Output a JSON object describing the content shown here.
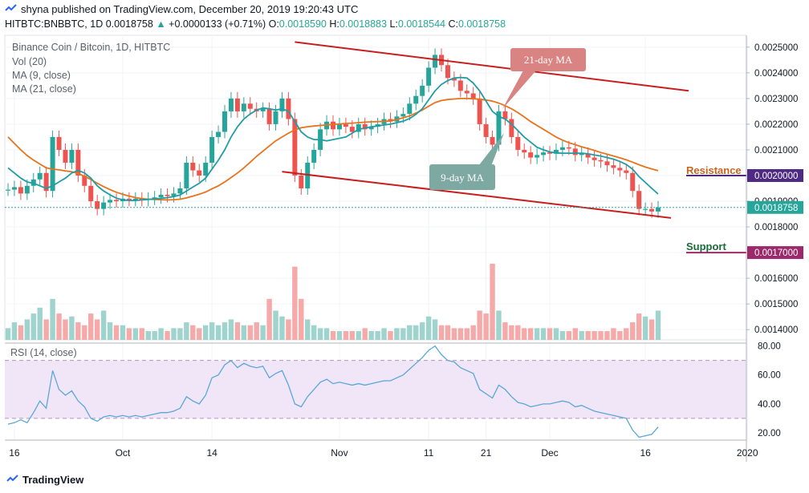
{
  "header": {
    "publisher_line": "shyna published on TradingView.com, December 20, 2019 19:20:43 UTC",
    "symbol": "HITBTC:BNBBTC, 1D",
    "last": "0.0018758",
    "change": "+0.0000133 (+0.71%)",
    "o_label": "O:",
    "o_value": "0.0018590",
    "h_label": "H:",
    "h_value": "0.0018883",
    "l_label": "L:",
    "l_value": "0.0018544",
    "c_label": "C:",
    "c_value": "0.0018758"
  },
  "legend": {
    "title": "Binance Coin / Bitcoin, 1D, HITBTC",
    "vol": "Vol (20)",
    "ma9": "MA (9, close)",
    "ma21": "MA (21, close)",
    "rsi": "RSI (14, close)"
  },
  "annotations": {
    "ma21_callout": "21-day MA",
    "ma9_callout": "9-day MA",
    "resistance_label": "Resistance",
    "resistance_value": "0.0020000",
    "support_label": "Support",
    "support_value": "0.0017000",
    "last_price_tag": "0.0018758",
    "hidden_price_tag": "0.0019000"
  },
  "footer": {
    "brand": "TradingView"
  },
  "colors": {
    "up": "#26a69a",
    "down": "#ef5350",
    "ma9": "#1f9da5",
    "ma21": "#e8731c",
    "trendline": "#c81e1e",
    "resistance": "#4e2a84",
    "support": "#9c2a6b",
    "rsi_line": "#5aa7d8",
    "rsi_band": "#f1e6f8"
  },
  "chart_data": {
    "type": "candlestick",
    "title": "Binance Coin / Bitcoin, 1D, HITBTC",
    "price_axis_ticks": [
      "0.0025000",
      "0.0024000",
      "0.0023000",
      "0.0022000",
      "0.0021000",
      "0.0020000",
      "0.0019000",
      "0.0018000",
      "0.0017000",
      "0.0016000",
      "0.0015000",
      "0.0014000"
    ],
    "price_range": [
      0.00136,
      0.00254
    ],
    "x_axis_ticks": [
      "16",
      "Oct",
      "14",
      "Nov",
      "11",
      "21",
      "Dec",
      "16",
      "2020"
    ],
    "x_tick_index": [
      1,
      18,
      32,
      52,
      66,
      75,
      85,
      100,
      116
    ],
    "num_bars": 103,
    "start_close": 0.001945,
    "closes": [
      0.001945,
      0.001955,
      0.00193,
      0.00196,
      0.001985,
      0.00201,
      0.00194,
      0.00215,
      0.0021,
      0.00205,
      0.0021,
      0.002,
      0.00196,
      0.0019,
      0.00187,
      0.001895,
      0.001905,
      0.0019,
      0.00191,
      0.001905,
      0.00191,
      0.001905,
      0.00191,
      0.001915,
      0.001925,
      0.00192,
      0.00193,
      0.00195,
      0.00205,
      0.00202,
      0.002,
      0.00205,
      0.00215,
      0.00217,
      0.00225,
      0.0023,
      0.00225,
      0.00228,
      0.00226,
      0.00225,
      0.00226,
      0.0022,
      0.00225,
      0.0023,
      0.00222,
      0.002,
      0.00195,
      0.00205,
      0.0021,
      0.00218,
      0.00221,
      0.00218,
      0.0022,
      0.00219,
      0.00217,
      0.0022,
      0.00218,
      0.00219,
      0.0022,
      0.00222,
      0.00221,
      0.00223,
      0.00224,
      0.00228,
      0.00231,
      0.00235,
      0.00242,
      0.00247,
      0.00243,
      0.00238,
      0.00237,
      0.00233,
      0.00232,
      0.0023,
      0.0022,
      0.00215,
      0.00212,
      0.00225,
      0.00222,
      0.00215,
      0.0021,
      0.00209,
      0.00207,
      0.00208,
      0.00209,
      0.002085,
      0.0021,
      0.00211,
      0.002105,
      0.00208,
      0.002085,
      0.00207,
      0.00206,
      0.002055,
      0.00204,
      0.00203,
      0.00202,
      0.00201,
      0.00194,
      0.00187,
      0.00187,
      0.00186,
      0.001876
    ],
    "volume": [
      4,
      6,
      5,
      7,
      9,
      11,
      7,
      14,
      9,
      7,
      8,
      6,
      5,
      9,
      7,
      10,
      6,
      5,
      5,
      4,
      4,
      4,
      3,
      3,
      4,
      3,
      4,
      4,
      6,
      5,
      4,
      5,
      6,
      5,
      6,
      7,
      6,
      5,
      5,
      6,
      5,
      14,
      10,
      8,
      7,
      25,
      14,
      7,
      5,
      4,
      4,
      3,
      3,
      3,
      3,
      3,
      4,
      3,
      3,
      4,
      3,
      4,
      4,
      5,
      5,
      6,
      8,
      7,
      5,
      5,
      4,
      4,
      4,
      5,
      10,
      9,
      26,
      10,
      6,
      5,
      5,
      4,
      4,
      4,
      4,
      4,
      4,
      3,
      3,
      4,
      3,
      3,
      3,
      3,
      3,
      4,
      3,
      4,
      6,
      9,
      8,
      7,
      10
    ],
    "volume_axis": "hidden",
    "ma9": [
      0.00203,
      0.00201,
      0.00199,
      0.001975,
      0.00197,
      0.00196,
      0.00195,
      0.00196,
      0.001975,
      0.00199,
      0.00201,
      0.00202,
      0.00201,
      0.00199,
      0.00196,
      0.00194,
      0.001925,
      0.001912,
      0.001905,
      0.001903,
      0.001903,
      0.001905,
      0.001907,
      0.001909,
      0.001911,
      0.001914,
      0.001918,
      0.001924,
      0.00194,
      0.001955,
      0.00197,
      0.00199,
      0.002025,
      0.00206,
      0.0021,
      0.00215,
      0.00219,
      0.00222,
      0.00224,
      0.002255,
      0.002263,
      0.00226,
      0.002255,
      0.00226,
      0.00225,
      0.00221,
      0.00217,
      0.00215,
      0.00214,
      0.00214,
      0.002135,
      0.00214,
      0.002145,
      0.00215,
      0.002165,
      0.00218,
      0.002185,
      0.00219,
      0.002193,
      0.002197,
      0.0022,
      0.002206,
      0.002212,
      0.002222,
      0.002238,
      0.00226,
      0.002295,
      0.00233,
      0.002355,
      0.00237,
      0.00238,
      0.002382,
      0.00238,
      0.00236,
      0.00233,
      0.00229,
      0.00225,
      0.00223,
      0.00222,
      0.0022,
      0.002175,
      0.00215,
      0.00213,
      0.00211,
      0.0021,
      0.002092,
      0.002088,
      0.002087,
      0.002087,
      0.002087,
      0.002087,
      0.002085,
      0.00208,
      0.002076,
      0.00207,
      0.002064,
      0.002055,
      0.002043,
      0.002025,
      0.001996,
      0.001973,
      0.00195,
      0.001928
    ],
    "ma21": [
      0.00215,
      0.002125,
      0.0021,
      0.002078,
      0.00206,
      0.002045,
      0.00203,
      0.002025,
      0.002022,
      0.002018,
      0.002015,
      0.002008,
      0.001997,
      0.001985,
      0.00197,
      0.001957,
      0.001945,
      0.001935,
      0.001927,
      0.00192,
      0.001914,
      0.00191,
      0.001908,
      0.001907,
      0.001906,
      0.001905,
      0.001906,
      0.001908,
      0.001913,
      0.00192,
      0.001927,
      0.001936,
      0.001948,
      0.00196,
      0.001975,
      0.001992,
      0.00201,
      0.00203,
      0.002052,
      0.002075,
      0.002095,
      0.002115,
      0.002135,
      0.00215,
      0.002165,
      0.002178,
      0.002186,
      0.00219,
      0.002193,
      0.002195,
      0.002197,
      0.002199,
      0.002201,
      0.002203,
      0.002204,
      0.002206,
      0.002208,
      0.002209,
      0.00221,
      0.002211,
      0.002213,
      0.002218,
      0.002225,
      0.002232,
      0.002243,
      0.002255,
      0.00227,
      0.002284,
      0.002292,
      0.002296,
      0.002298,
      0.0023,
      0.0023,
      0.002299,
      0.002297,
      0.002294,
      0.00229,
      0.002282,
      0.002272,
      0.00226,
      0.002245,
      0.002228,
      0.00221,
      0.002195,
      0.00218,
      0.002165,
      0.00215,
      0.002138,
      0.002128,
      0.00212,
      0.002112,
      0.002105,
      0.002098,
      0.00209,
      0.002083,
      0.002076,
      0.002069,
      0.002061,
      0.002052,
      0.002042,
      0.002033,
      0.002026,
      0.002019
    ],
    "rsi": [
      26,
      27,
      29,
      27,
      34,
      42,
      37,
      63,
      50,
      46,
      49,
      42,
      38,
      30,
      28,
      31,
      32,
      31,
      32,
      31,
      32,
      31,
      32,
      33,
      34,
      34,
      35,
      37,
      45,
      42,
      40,
      46,
      58,
      60,
      67,
      70,
      65,
      68,
      66,
      65,
      66,
      58,
      61,
      63,
      53,
      40,
      38,
      45,
      50,
      55,
      57,
      54,
      55,
      54,
      53,
      54,
      53,
      54,
      55,
      56,
      56,
      58,
      60,
      64,
      68,
      72,
      77,
      80,
      74,
      70,
      69,
      65,
      63,
      61,
      50,
      47,
      44,
      53,
      50,
      45,
      41,
      40,
      38,
      39,
      40,
      40,
      41,
      42,
      41,
      38,
      39,
      37,
      35,
      34,
      33,
      32,
      31,
      30,
      22,
      17,
      18,
      19,
      24
    ],
    "rsi_axis_ticks": [
      "80.00",
      "60.00",
      "40.00",
      "20.00"
    ],
    "rsi_range": [
      15,
      82
    ],
    "rsi_bands": [
      30,
      70
    ],
    "trendline_upper": {
      "from": [
        45,
        0.00252
      ],
      "to": [
        103,
        0.00233
      ]
    },
    "trendline_lower": {
      "from": [
        43,
        0.002015
      ],
      "to": [
        103,
        0.001835
      ]
    },
    "resistance": 0.002,
    "support": 0.0017,
    "last_price": 0.0018758
  }
}
